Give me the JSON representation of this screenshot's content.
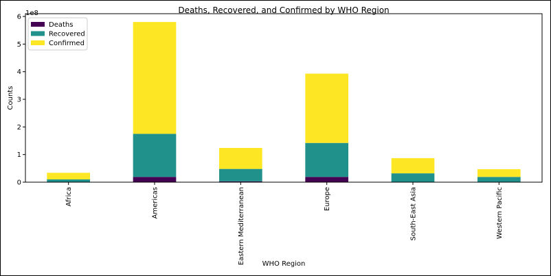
{
  "chart_data": {
    "type": "bar",
    "stacked": true,
    "title": "Deaths, Recovered, and Confirmed by WHO Region",
    "xlabel": "WHO Region",
    "ylabel": "Counts",
    "y_scale_note": "1e8",
    "ylim": [
      0,
      6.1
    ],
    "yticks": [
      0,
      1,
      2,
      3,
      4,
      5,
      6
    ],
    "legend_position": "top-left",
    "grid": false,
    "categories": [
      "Africa",
      "Americas",
      "Eastern Mediterranean",
      "Europe",
      "South-East Asia",
      "Western Pacific"
    ],
    "series": [
      {
        "name": "Deaths",
        "color": "#440154",
        "values": [
          0.01,
          0.19,
          0.03,
          0.19,
          0.01,
          0.01
        ]
      },
      {
        "name": "Recovered",
        "color": "#21918c",
        "values": [
          0.09,
          1.56,
          0.45,
          1.23,
          0.31,
          0.18
        ]
      },
      {
        "name": "Confirmed",
        "color": "#fde725",
        "values": [
          0.24,
          4.05,
          0.76,
          2.51,
          0.55,
          0.28
        ]
      }
    ]
  }
}
